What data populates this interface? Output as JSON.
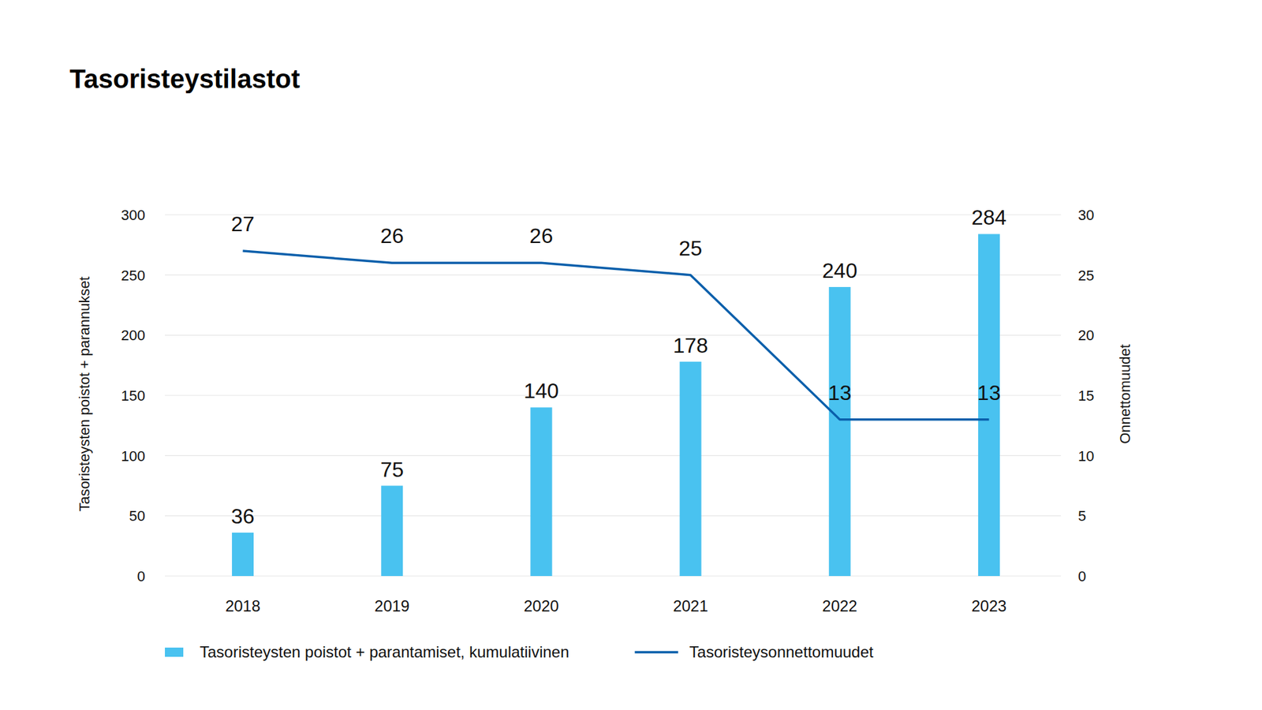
{
  "chart_data": {
    "type": "bar",
    "title": "Tasoristeystilastot",
    "categories": [
      "2018",
      "2019",
      "2020",
      "2021",
      "2022",
      "2023"
    ],
    "series": [
      {
        "name": "Tasoristeysten poistot + parantamiset, kumulatiivinen",
        "type": "bar",
        "color": "#49c2f0",
        "values": [
          36,
          75,
          140,
          178,
          240,
          284
        ]
      },
      {
        "name": "Tasoristeysonnettomuudet",
        "type": "line",
        "color": "#0a5fab",
        "axis": "y2",
        "values": [
          27,
          26,
          26,
          25,
          13,
          13
        ]
      }
    ],
    "y_label": "Tasoristeysten poistot + parannukset",
    "y2_label": "Onnettomuudet",
    "ylim": [
      0,
      300
    ],
    "yticks": [
      0,
      50,
      100,
      150,
      200,
      250,
      300
    ],
    "y2lim": [
      0,
      30
    ],
    "y2ticks": [
      0,
      5,
      10,
      15,
      20,
      25,
      30
    ],
    "grid": true,
    "data_labels": true,
    "legend": "bottom"
  }
}
